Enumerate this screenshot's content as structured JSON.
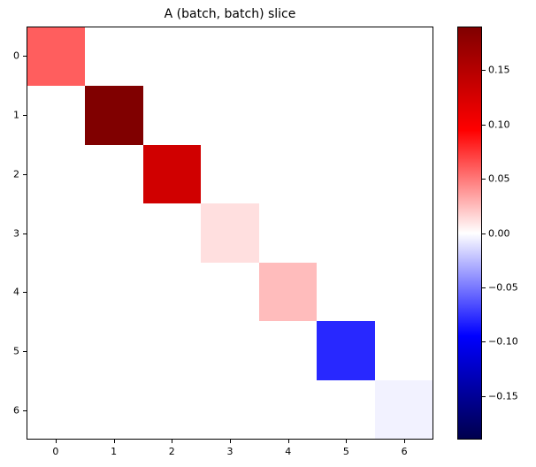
{
  "chart_data": {
    "type": "heatmap",
    "title": "A (batch, batch) slice",
    "x_tick_labels": [
      "0",
      "1",
      "2",
      "3",
      "4",
      "5",
      "6"
    ],
    "y_tick_labels": [
      "0",
      "1",
      "2",
      "3",
      "4",
      "5",
      "6"
    ],
    "matrix": [
      [
        0.06,
        0,
        0,
        0,
        0,
        0,
        0
      ],
      [
        0,
        0.19,
        0,
        0,
        0,
        0,
        0
      ],
      [
        0,
        0,
        0.13,
        0,
        0,
        0,
        0
      ],
      [
        0,
        0,
        0,
        0.012,
        0,
        0,
        0
      ],
      [
        0,
        0,
        0,
        0,
        0.025,
        0,
        0
      ],
      [
        0,
        0,
        0,
        0,
        0,
        -0.08,
        0
      ],
      [
        0,
        0,
        0,
        0,
        0,
        0,
        -0.005
      ]
    ],
    "vmin": -0.19,
    "vmax": 0.19,
    "colormap": "seismic",
    "colormap_stops": [
      "#00004d",
      "#0000ff",
      "#ffffff",
      "#ff0000",
      "#800000"
    ],
    "background": "#ffffff",
    "grid": false,
    "legend": "none",
    "colorbar": {
      "position": "right",
      "tick_labels": [
        "0.15",
        "0.10",
        "0.05",
        "0.00",
        "−0.05",
        "−0.10",
        "−0.15"
      ],
      "tick_values": [
        0.15,
        0.1,
        0.05,
        0.0,
        -0.05,
        -0.1,
        -0.15
      ]
    }
  }
}
